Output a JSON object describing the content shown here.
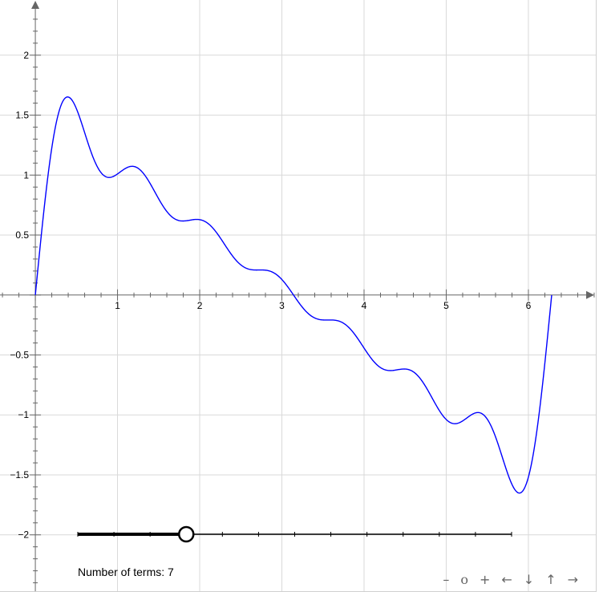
{
  "chart_data": {
    "type": "line",
    "title": "",
    "xlabel": "",
    "ylabel": "",
    "xlim": [
      -0.43,
      6.82
    ],
    "ylim": [
      -2.47,
      2.46
    ],
    "x_ticks": [
      1,
      2,
      3,
      4,
      5,
      6
    ],
    "y_ticks": [
      -2,
      -1.5,
      -1,
      -0.5,
      0.5,
      1,
      1.5,
      2
    ],
    "x_tick_labels": [
      "1",
      "2",
      "3",
      "4",
      "5",
      "6"
    ],
    "y_tick_labels": [
      "−2",
      "−1.5",
      "−1",
      "−0.5",
      "0.5",
      "1",
      "1.5",
      "2"
    ],
    "grid": true,
    "line_color": "#0000ff",
    "series": [
      {
        "function": "sum_{n=1..7} sin(n*x)/n",
        "x_range": [
          0,
          6.283
        ]
      }
    ]
  },
  "slider": {
    "label": "Number of terms",
    "value": 7,
    "min": 1,
    "max": 25,
    "caption": "Number of terms: 7"
  },
  "navigation": {
    "zoom_out": "–",
    "zoom_reset": "o",
    "zoom_in": "+",
    "pan_left": "←",
    "pan_down": "↓",
    "pan_up": "↑",
    "pan_right": "→"
  }
}
